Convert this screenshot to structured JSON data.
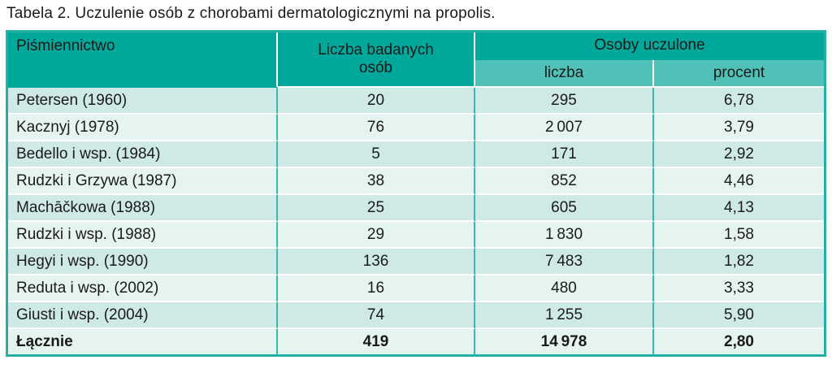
{
  "title": "Tabela 2. Uczulenie osób z chorobami dermatologicznymi na propolis.",
  "table": {
    "headers": {
      "literature": "Piśmiennictwo",
      "examined": "Liczba badanych osób",
      "sensitized_group": "Osoby uczulone",
      "sensitized_number": "liczba",
      "sensitized_percent": "procent"
    },
    "rows": [
      {
        "reference": "Petersen (1960)",
        "examined": "20",
        "number": "295",
        "percent": "6,78"
      },
      {
        "reference": "Kacznyj (1978)",
        "examined": "76",
        "number": "2 007",
        "percent": "3,79"
      },
      {
        "reference": "Bedello i wsp. (1984)",
        "examined": "5",
        "number": "171",
        "percent": "2,92"
      },
      {
        "reference": "Rudzki i Grzywa (1987)",
        "examined": "38",
        "number": "852",
        "percent": "4,46"
      },
      {
        "reference": "Machāčkowa (1988)",
        "examined": "25",
        "number": "605",
        "percent": "4,13"
      },
      {
        "reference": "Rudzki i wsp. (1988)",
        "examined": "29",
        "number": "1 830",
        "percent": "1,58"
      },
      {
        "reference": "Hegyi i wsp. (1990)",
        "examined": "136",
        "number": "7 483",
        "percent": "1,82"
      },
      {
        "reference": "Reduta i wsp. (2002)",
        "examined": "16",
        "number": "480",
        "percent": "3,33"
      },
      {
        "reference": "Giusti i wsp. (2004)",
        "examined": "74",
        "number": "1 255",
        "percent": "5,90"
      }
    ],
    "total": {
      "reference": "Łącznie",
      "examined": "419",
      "number": "14 978",
      "percent": "2,80"
    }
  },
  "colors": {
    "header_teal": "#00a79b",
    "subheader_teal": "#50c1b6",
    "row_dark_mint": "#cfeae6",
    "row_light_mint": "#e5f4f1",
    "border_teal": "#3ab9ad",
    "outer_border": "#22b0a4",
    "text": "#1a1a1a"
  },
  "chart_data": {
    "type": "table",
    "title": "Tabela 2. Uczulenie osób z chorobami dermatologicznymi na propolis.",
    "columns": [
      "Piśmiennictwo",
      "Liczba badanych osób",
      "Osoby uczulone – liczba",
      "Osoby uczulone – procent"
    ],
    "rows": [
      [
        "Petersen (1960)",
        20,
        295,
        6.78
      ],
      [
        "Kacznyj (1978)",
        76,
        2007,
        3.79
      ],
      [
        "Bedello i wsp. (1984)",
        5,
        171,
        2.92
      ],
      [
        "Rudzki i Grzywa (1987)",
        38,
        852,
        4.46
      ],
      [
        "Machāčkowa (1988)",
        25,
        605,
        4.13
      ],
      [
        "Rudzki i wsp. (1988)",
        29,
        1830,
        1.58
      ],
      [
        "Hegyi i wsp. (1990)",
        136,
        7483,
        1.82
      ],
      [
        "Reduta i wsp. (2002)",
        16,
        480,
        3.33
      ],
      [
        "Giusti i wsp. (2004)",
        74,
        1255,
        5.9
      ]
    ],
    "total_row": [
      "Łącznie",
      419,
      14978,
      2.8
    ]
  }
}
